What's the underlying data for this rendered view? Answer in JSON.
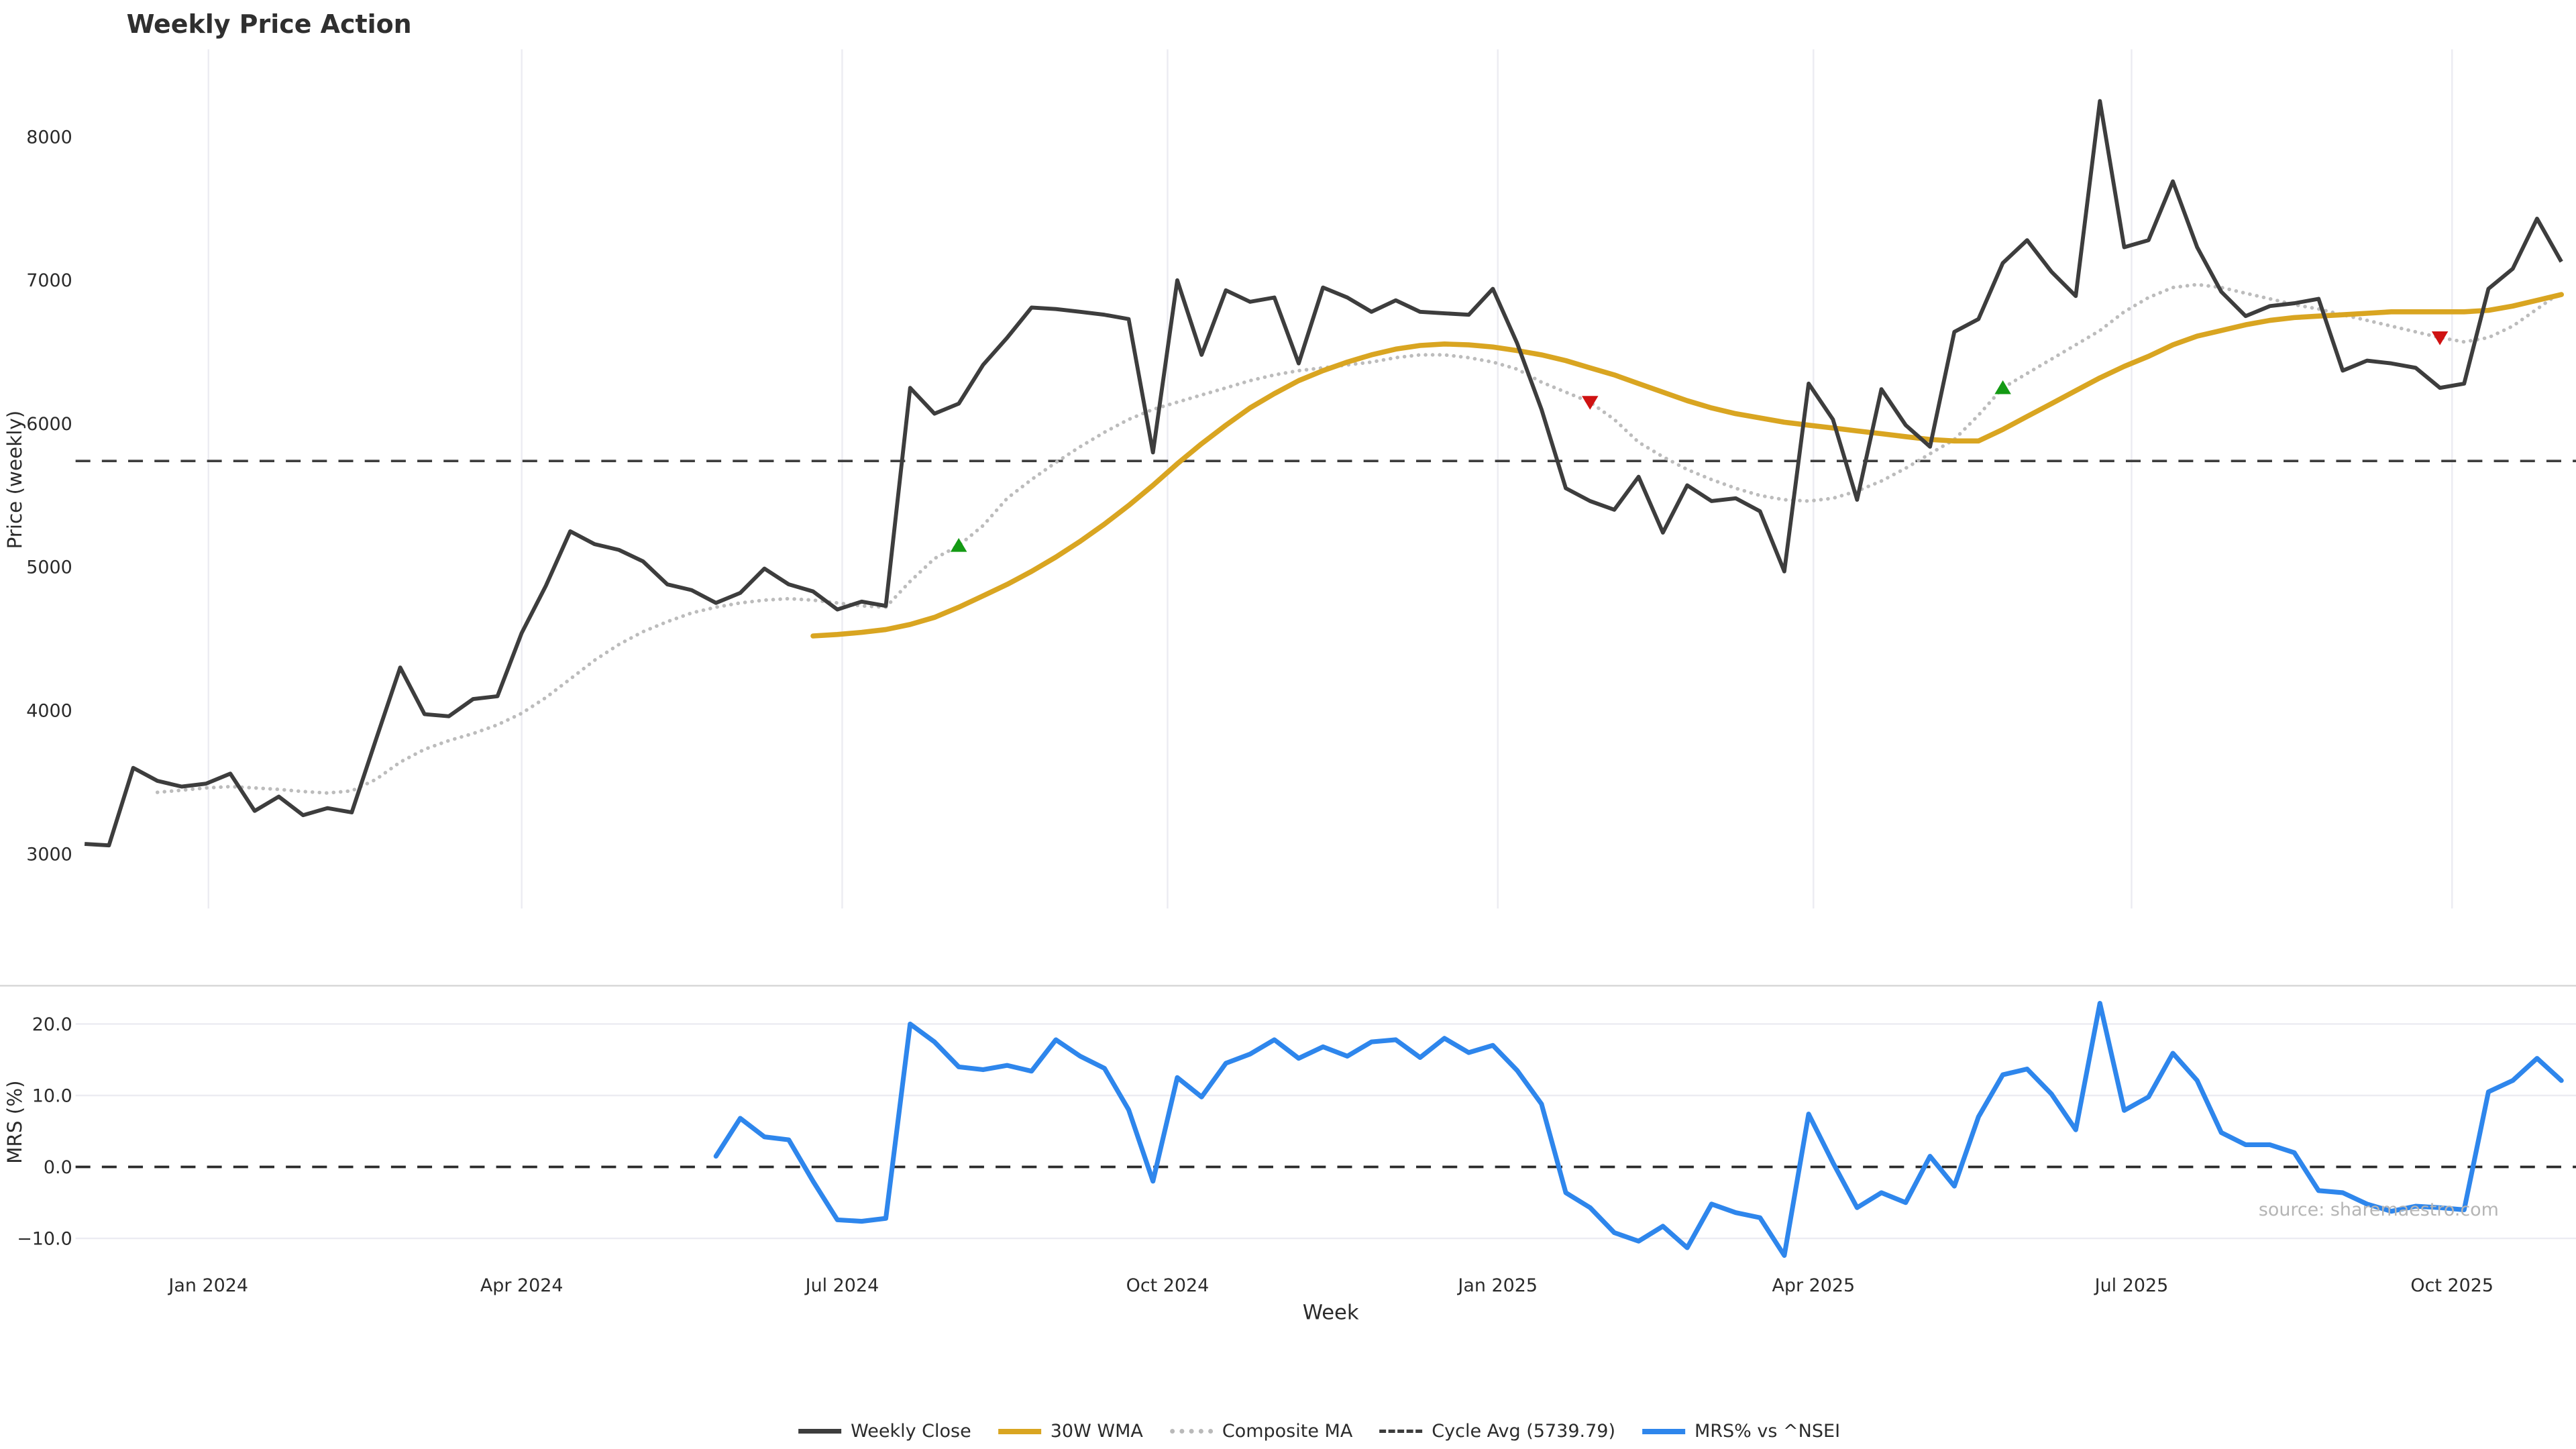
{
  "title": "Weekly Price Action",
  "source_note": "source: sharemaestro.com",
  "axes": {
    "price_ylabel": "Price (weekly)",
    "mrs_ylabel": "MRS (%)",
    "xlabel": "Week",
    "price_yticks": [
      8000,
      7000,
      6000,
      5000,
      4000,
      3000
    ],
    "mrs_yticks": [
      20.0,
      10.0,
      0.0,
      -10.0
    ],
    "mrs_ytick_labels": [
      "20.0",
      "10.0",
      "0.0",
      "−10.0"
    ],
    "xticks": [
      {
        "label": "Jan 2024",
        "week": 5.1
      },
      {
        "label": "Apr 2024",
        "week": 18.0
      },
      {
        "label": "Jul 2024",
        "week": 31.2
      },
      {
        "label": "Oct 2024",
        "week": 44.6
      },
      {
        "label": "Jan 2025",
        "week": 58.2
      },
      {
        "label": "Apr 2025",
        "week": 71.2
      },
      {
        "label": "Jul 2025",
        "week": 84.3
      },
      {
        "label": "Oct 2025",
        "week": 97.5
      }
    ]
  },
  "legend": {
    "weekly_close": "Weekly Close",
    "wma": "30W WMA",
    "composite": "Composite MA",
    "cycle_avg": "Cycle Avg (5739.79)",
    "mrs": "MRS% vs ^NSEI"
  },
  "colors": {
    "weekly_close": "#3d3d3d",
    "wma": "#d9a521",
    "composite": "#bcbcbc",
    "cycle_avg": "#3d3d3d",
    "mrs": "#2e86ec",
    "buy_marker": "#149a14",
    "sell_marker": "#cf1212",
    "grid": "#ececf2",
    "panel_border": "#d8d8d8",
    "tick_text": "#2b2b2b",
    "source_text": "#b5b5b5"
  },
  "chart_data": [
    {
      "type": "line",
      "panel": "price",
      "title": "Weekly Price Action",
      "xlabel": "Week",
      "ylabel": "Price (weekly)",
      "ylim": [
        2620,
        8610
      ],
      "grid": "vertical-only",
      "legend_position": "bottom-center",
      "cycle_avg_value": 5739.79,
      "x_unit": "week_index_from_2023-11-27",
      "series": [
        {
          "name": "Weekly Close",
          "values": [
            3070,
            3060,
            3600,
            3510,
            3470,
            3490,
            3560,
            3300,
            3400,
            3270,
            3320,
            3290,
            3800,
            4300,
            3975,
            3960,
            4080,
            4100,
            4540,
            4870,
            5250,
            5160,
            5120,
            5040,
            4880,
            4840,
            4750,
            4820,
            4990,
            4880,
            4830,
            4705,
            4760,
            4730,
            6250,
            6070,
            6140,
            6410,
            6600,
            6810,
            6800,
            6780,
            6760,
            6730,
            5800,
            7000,
            6480,
            6930,
            6850,
            6880,
            6420,
            6950,
            6880,
            6780,
            6860,
            6780,
            6770,
            6760,
            6940,
            6560,
            6100,
            5550,
            5460,
            5400,
            5630,
            5240,
            5570,
            5460,
            5480,
            5390,
            4970,
            6280,
            6030,
            5470,
            6240,
            5990,
            5840,
            6640,
            6730,
            7120,
            7280,
            7060,
            6890,
            8250,
            7230,
            7280,
            7690,
            7230,
            6920,
            6750,
            6820,
            6840,
            6870,
            6370,
            6440,
            6420,
            6390,
            6250,
            6280,
            6940,
            7080,
            7430,
            7130
          ]
        },
        {
          "name": "30W WMA",
          "values": [
            null,
            null,
            null,
            null,
            null,
            null,
            null,
            null,
            null,
            null,
            null,
            null,
            null,
            null,
            null,
            null,
            null,
            null,
            null,
            null,
            null,
            null,
            null,
            null,
            null,
            null,
            null,
            null,
            null,
            null,
            4520,
            4530,
            4545,
            4565,
            4600,
            4650,
            4720,
            4800,
            4880,
            4970,
            5070,
            5180,
            5300,
            5430,
            5570,
            5720,
            5860,
            5990,
            6110,
            6210,
            6300,
            6370,
            6430,
            6480,
            6520,
            6545,
            6555,
            6550,
            6535,
            6510,
            6480,
            6440,
            6390,
            6340,
            6280,
            6220,
            6160,
            6110,
            6070,
            6040,
            6010,
            5990,
            5970,
            5950,
            5930,
            5910,
            5890,
            5880,
            5880,
            5960,
            6050,
            6140,
            6230,
            6320,
            6400,
            6470,
            6550,
            6610,
            6650,
            6690,
            6720,
            6740,
            6750,
            6760,
            6770,
            6780,
            6780,
            6780,
            6780,
            6790,
            6820,
            6860,
            6900
          ]
        },
        {
          "name": "Composite MA",
          "values": [
            null,
            null,
            null,
            3430,
            3445,
            3460,
            3470,
            3460,
            3450,
            3435,
            3425,
            3440,
            3520,
            3640,
            3730,
            3790,
            3840,
            3900,
            3980,
            4090,
            4220,
            4350,
            4460,
            4550,
            4620,
            4680,
            4720,
            4750,
            4770,
            4780,
            4770,
            4750,
            4730,
            4720,
            4900,
            5060,
            5150,
            5290,
            5480,
            5610,
            5730,
            5840,
            5940,
            6030,
            6100,
            6150,
            6200,
            6250,
            6300,
            6340,
            6370,
            6390,
            6410,
            6430,
            6460,
            6480,
            6480,
            6460,
            6430,
            6380,
            6290,
            6220,
            6150,
            6030,
            5870,
            5770,
            5680,
            5610,
            5550,
            5500,
            5470,
            5460,
            5480,
            5530,
            5600,
            5690,
            5790,
            5890,
            6060,
            6250,
            6350,
            6450,
            6550,
            6650,
            6780,
            6880,
            6950,
            6970,
            6950,
            6910,
            6870,
            6830,
            6800,
            6760,
            6720,
            6680,
            6640,
            6600,
            6570,
            6600,
            6680,
            6800,
            6920
          ]
        }
      ],
      "markers": [
        {
          "week": 36,
          "value": 5150,
          "shape": "triangle-up",
          "meaning": "buy-signal"
        },
        {
          "week": 62,
          "value": 6150,
          "shape": "triangle-down",
          "meaning": "sell-signal"
        },
        {
          "week": 79,
          "value": 6250,
          "shape": "triangle-up",
          "meaning": "buy-signal"
        },
        {
          "week": 97,
          "value": 6600,
          "shape": "triangle-down",
          "meaning": "sell-signal"
        }
      ]
    },
    {
      "type": "line",
      "panel": "mrs",
      "ylabel": "MRS (%)",
      "ylim": [
        -13.1,
        25.4
      ],
      "grid": "horizontal-only",
      "zero_line": "dashed",
      "series": [
        {
          "name": "MRS% vs ^NSEI",
          "values": [
            null,
            null,
            null,
            null,
            null,
            null,
            null,
            null,
            null,
            null,
            null,
            null,
            null,
            null,
            null,
            null,
            null,
            null,
            null,
            null,
            null,
            null,
            null,
            null,
            null,
            null,
            1.5,
            6.8,
            4.2,
            3.8,
            -2.0,
            -7.4,
            -7.6,
            -7.2,
            20.0,
            17.5,
            14.0,
            13.6,
            14.2,
            13.4,
            17.8,
            15.5,
            13.8,
            8.0,
            -2.0,
            12.5,
            9.8,
            14.5,
            15.8,
            17.8,
            15.2,
            16.8,
            15.5,
            17.5,
            17.8,
            15.3,
            18.0,
            16.0,
            17.0,
            13.5,
            8.8,
            -3.6,
            -5.7,
            -9.2,
            -10.4,
            -8.3,
            -11.3,
            -5.2,
            -6.4,
            -7.1,
            -12.4,
            7.4,
            0.6,
            -5.7,
            -3.6,
            -5.0,
            1.5,
            -2.7,
            7.0,
            12.9,
            13.7,
            10.2,
            5.2,
            22.9,
            7.9,
            9.8,
            15.9,
            12.1,
            4.8,
            3.1,
            3.1,
            2.0,
            -3.3,
            -3.6,
            -5.2,
            -6.2,
            -5.5,
            -5.7,
            -6.0,
            10.5,
            12.1,
            15.2,
            12.1
          ]
        }
      ]
    }
  ]
}
